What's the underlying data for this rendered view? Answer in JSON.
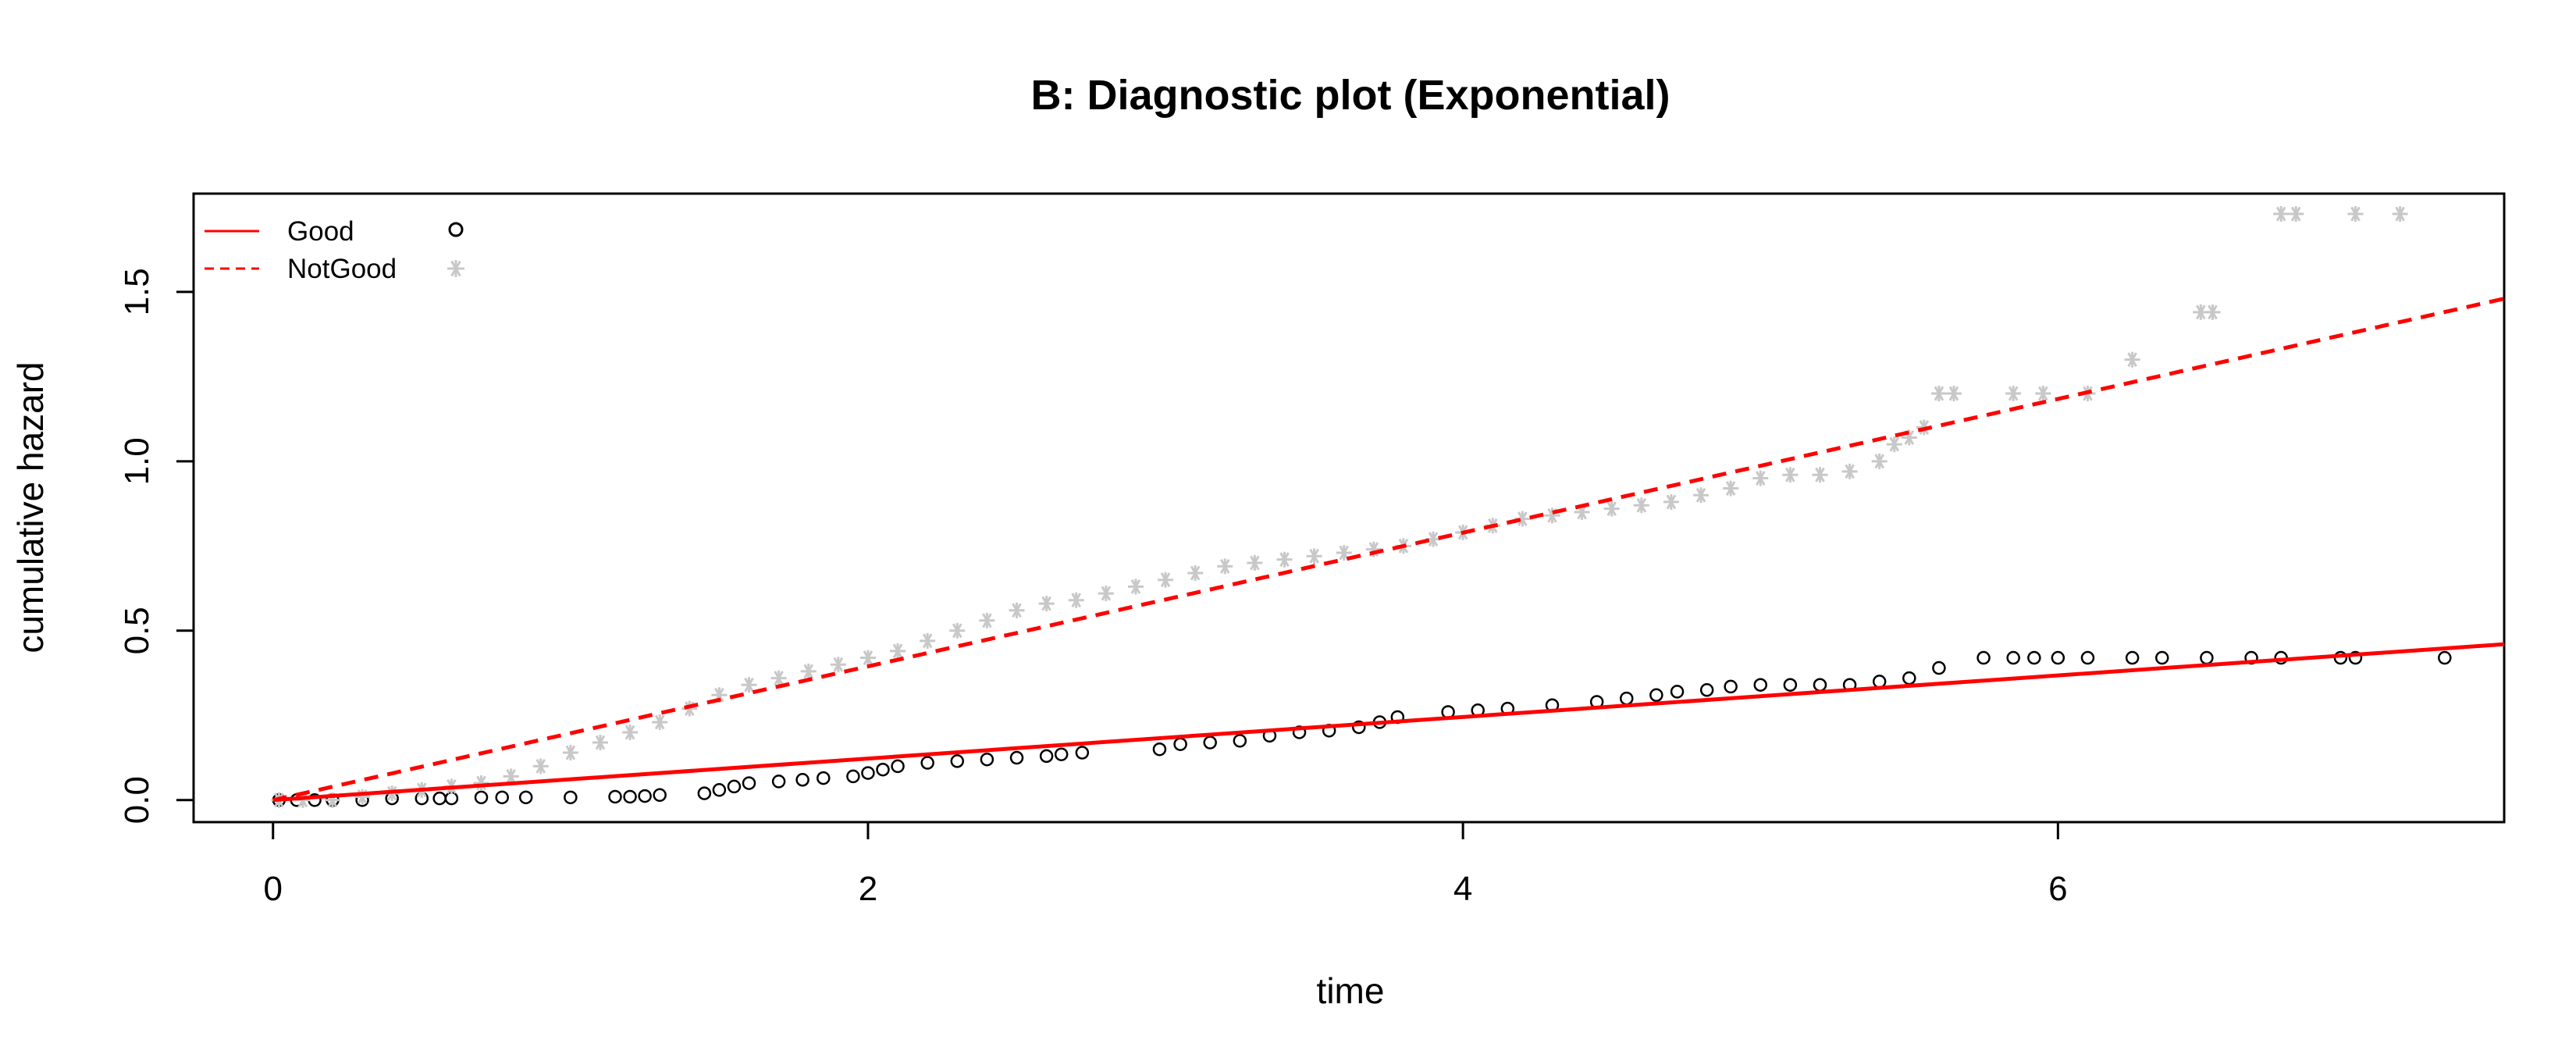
{
  "chart_data": {
    "type": "scatter",
    "title": "B: Diagnostic plot (Exponential)",
    "xlabel": "time",
    "ylabel": "cumulative hazard",
    "xlim": [
      -0.267,
      7.5
    ],
    "ylim": [
      -0.065,
      1.79
    ],
    "x_ticks": [
      0,
      2,
      4,
      6
    ],
    "y_ticks": [
      0.0,
      0.5,
      1.0,
      1.5
    ],
    "x_tick_labels": [
      "0",
      "2",
      "4",
      "6"
    ],
    "y_tick_labels": [
      "0.0",
      "0.5",
      "1.0",
      "1.5"
    ],
    "grid": false,
    "legend": {
      "position": "top-left",
      "entries": [
        {
          "label": "Good",
          "line": "solid",
          "symbol": "open-circle"
        },
        {
          "label": "NotGood",
          "line": "dashed",
          "symbol": "asterisk"
        }
      ]
    },
    "colors": {
      "fit": "#ff0000",
      "good_points": "#000000",
      "notgood_points": "#c8c8c8"
    },
    "fit_lines": [
      {
        "group": "Good",
        "style": "solid",
        "x": [
          0,
          7.5
        ],
        "y": [
          0.0,
          0.46
        ]
      },
      {
        "group": "NotGood",
        "style": "dashed",
        "x": [
          0,
          7.5
        ],
        "y": [
          0.0,
          1.48
        ]
      }
    ],
    "series": [
      {
        "name": "Good",
        "marker": "open-circle",
        "points": [
          [
            0.02,
            0.0
          ],
          [
            0.08,
            0.0
          ],
          [
            0.14,
            0.0
          ],
          [
            0.2,
            0.0
          ],
          [
            0.3,
            0.0
          ],
          [
            0.4,
            0.005
          ],
          [
            0.5,
            0.005
          ],
          [
            0.56,
            0.005
          ],
          [
            0.6,
            0.005
          ],
          [
            0.7,
            0.008
          ],
          [
            0.77,
            0.008
          ],
          [
            0.85,
            0.008
          ],
          [
            1.0,
            0.008
          ],
          [
            1.15,
            0.01
          ],
          [
            1.2,
            0.01
          ],
          [
            1.25,
            0.012
          ],
          [
            1.3,
            0.015
          ],
          [
            1.45,
            0.02
          ],
          [
            1.5,
            0.03
          ],
          [
            1.55,
            0.04
          ],
          [
            1.6,
            0.05
          ],
          [
            1.7,
            0.055
          ],
          [
            1.78,
            0.06
          ],
          [
            1.85,
            0.065
          ],
          [
            1.95,
            0.07
          ],
          [
            2.0,
            0.08
          ],
          [
            2.05,
            0.09
          ],
          [
            2.1,
            0.1
          ],
          [
            2.2,
            0.11
          ],
          [
            2.3,
            0.115
          ],
          [
            2.4,
            0.12
          ],
          [
            2.5,
            0.125
          ],
          [
            2.6,
            0.13
          ],
          [
            2.65,
            0.135
          ],
          [
            2.72,
            0.14
          ],
          [
            2.98,
            0.15
          ],
          [
            3.05,
            0.165
          ],
          [
            3.15,
            0.17
          ],
          [
            3.25,
            0.175
          ],
          [
            3.35,
            0.19
          ],
          [
            3.45,
            0.2
          ],
          [
            3.55,
            0.205
          ],
          [
            3.65,
            0.215
          ],
          [
            3.72,
            0.23
          ],
          [
            3.78,
            0.245
          ],
          [
            3.95,
            0.26
          ],
          [
            4.05,
            0.265
          ],
          [
            4.15,
            0.27
          ],
          [
            4.3,
            0.28
          ],
          [
            4.45,
            0.29
          ],
          [
            4.55,
            0.3
          ],
          [
            4.65,
            0.31
          ],
          [
            4.72,
            0.32
          ],
          [
            4.82,
            0.325
          ],
          [
            4.9,
            0.335
          ],
          [
            5.0,
            0.34
          ],
          [
            5.1,
            0.34
          ],
          [
            5.2,
            0.34
          ],
          [
            5.3,
            0.34
          ],
          [
            5.4,
            0.35
          ],
          [
            5.5,
            0.36
          ],
          [
            5.6,
            0.39
          ],
          [
            5.75,
            0.42
          ],
          [
            5.85,
            0.42
          ],
          [
            5.92,
            0.42
          ],
          [
            6.0,
            0.42
          ],
          [
            6.1,
            0.42
          ],
          [
            6.25,
            0.42
          ],
          [
            6.35,
            0.42
          ],
          [
            6.5,
            0.42
          ],
          [
            6.65,
            0.42
          ],
          [
            6.75,
            0.42
          ],
          [
            6.95,
            0.42
          ],
          [
            7.0,
            0.42
          ],
          [
            7.3,
            0.42
          ]
        ]
      },
      {
        "name": "NotGood",
        "marker": "asterisk",
        "points": [
          [
            0.02,
            0.0
          ],
          [
            0.1,
            0.0
          ],
          [
            0.2,
            0.0
          ],
          [
            0.3,
            0.01
          ],
          [
            0.4,
            0.02
          ],
          [
            0.5,
            0.03
          ],
          [
            0.6,
            0.04
          ],
          [
            0.7,
            0.05
          ],
          [
            0.8,
            0.07
          ],
          [
            0.9,
            0.1
          ],
          [
            1.0,
            0.14
          ],
          [
            1.1,
            0.17
          ],
          [
            1.2,
            0.2
          ],
          [
            1.3,
            0.23
          ],
          [
            1.4,
            0.27
          ],
          [
            1.5,
            0.31
          ],
          [
            1.6,
            0.34
          ],
          [
            1.7,
            0.36
          ],
          [
            1.8,
            0.38
          ],
          [
            1.9,
            0.4
          ],
          [
            2.0,
            0.42
          ],
          [
            2.1,
            0.44
          ],
          [
            2.2,
            0.47
          ],
          [
            2.3,
            0.5
          ],
          [
            2.4,
            0.53
          ],
          [
            2.5,
            0.56
          ],
          [
            2.6,
            0.58
          ],
          [
            2.7,
            0.59
          ],
          [
            2.8,
            0.61
          ],
          [
            2.9,
            0.63
          ],
          [
            3.0,
            0.65
          ],
          [
            3.1,
            0.67
          ],
          [
            3.2,
            0.69
          ],
          [
            3.3,
            0.7
          ],
          [
            3.4,
            0.71
          ],
          [
            3.5,
            0.72
          ],
          [
            3.6,
            0.73
          ],
          [
            3.7,
            0.74
          ],
          [
            3.8,
            0.75
          ],
          [
            3.9,
            0.77
          ],
          [
            4.0,
            0.79
          ],
          [
            4.1,
            0.81
          ],
          [
            4.2,
            0.83
          ],
          [
            4.3,
            0.84
          ],
          [
            4.4,
            0.85
          ],
          [
            4.5,
            0.86
          ],
          [
            4.6,
            0.87
          ],
          [
            4.7,
            0.88
          ],
          [
            4.8,
            0.9
          ],
          [
            4.9,
            0.92
          ],
          [
            5.0,
            0.95
          ],
          [
            5.1,
            0.96
          ],
          [
            5.2,
            0.96
          ],
          [
            5.3,
            0.97
          ],
          [
            5.4,
            1.0
          ],
          [
            5.45,
            1.05
          ],
          [
            5.5,
            1.07
          ],
          [
            5.55,
            1.1
          ],
          [
            5.6,
            1.2
          ],
          [
            5.65,
            1.2
          ],
          [
            5.85,
            1.2
          ],
          [
            5.95,
            1.2
          ],
          [
            6.1,
            1.2
          ],
          [
            6.25,
            1.3
          ],
          [
            6.48,
            1.44
          ],
          [
            6.52,
            1.44
          ],
          [
            6.75,
            1.73
          ],
          [
            6.8,
            1.73
          ],
          [
            7.0,
            1.73
          ],
          [
            7.15,
            1.73
          ]
        ]
      }
    ]
  }
}
